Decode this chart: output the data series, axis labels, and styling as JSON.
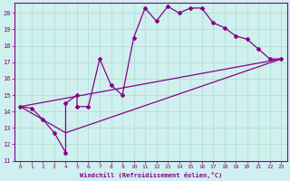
{
  "xlabel": "Windchill (Refroidissement éolien,°C)",
  "background_color": "#cff0ee",
  "line_color": "#880088",
  "xlim": [
    -0.5,
    23.5
  ],
  "ylim": [
    11,
    20.6
  ],
  "xticks": [
    0,
    1,
    2,
    3,
    4,
    5,
    6,
    7,
    8,
    9,
    10,
    11,
    12,
    13,
    14,
    15,
    16,
    17,
    18,
    19,
    20,
    21,
    22,
    23
  ],
  "yticks": [
    11,
    12,
    13,
    14,
    15,
    16,
    17,
    18,
    19,
    20
  ],
  "grid_color": "#aaddcc",
  "series": [
    [
      0,
      14.3
    ],
    [
      1,
      14.2
    ],
    [
      2,
      13.5
    ],
    [
      3,
      12.7
    ],
    [
      4,
      11.5
    ],
    [
      4,
      14.5
    ],
    [
      5,
      15.0
    ],
    [
      5,
      14.3
    ],
    [
      6,
      14.3
    ],
    [
      7,
      17.2
    ],
    [
      8,
      15.6
    ],
    [
      9,
      15.0
    ],
    [
      10,
      18.5
    ],
    [
      11,
      20.3
    ],
    [
      12,
      19.5
    ],
    [
      13,
      20.4
    ],
    [
      14,
      20.0
    ],
    [
      15,
      20.3
    ],
    [
      16,
      20.3
    ],
    [
      17,
      19.4
    ],
    [
      18,
      19.1
    ],
    [
      19,
      18.6
    ],
    [
      20,
      18.4
    ],
    [
      21,
      17.8
    ],
    [
      22,
      17.2
    ],
    [
      23,
      17.2
    ]
  ],
  "line_upper": [
    [
      0,
      14.3
    ],
    [
      23,
      17.2
    ]
  ],
  "line_lower": [
    [
      0,
      14.3
    ],
    [
      4,
      12.7
    ],
    [
      23,
      17.2
    ]
  ]
}
